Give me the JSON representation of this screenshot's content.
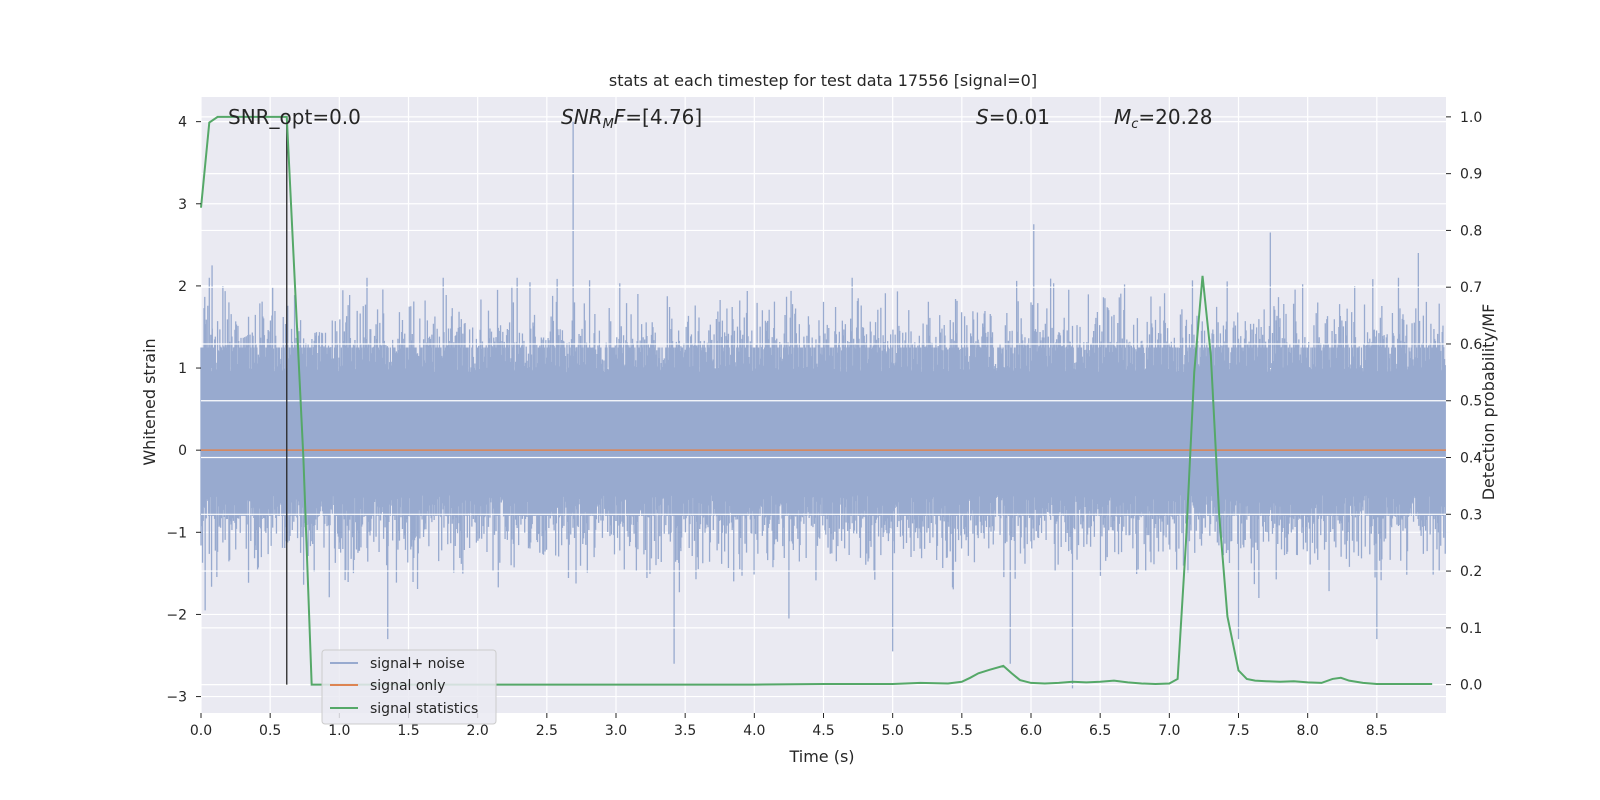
{
  "chart_data": {
    "type": "line",
    "title": "stats at each timestep for test data 17556 [signal=0]",
    "xlabel": "Time (s)",
    "ylabel": "Whitened strain",
    "y2label": "Detection probability/MF",
    "xlim": [
      0,
      9
    ],
    "ylim": [
      -3.2,
      4.3
    ],
    "y2lim": [
      -0.05,
      1.035
    ],
    "xticks": [
      0.0,
      0.5,
      1.0,
      1.5,
      2.0,
      2.5,
      3.0,
      3.5,
      4.0,
      4.5,
      5.0,
      5.5,
      6.0,
      6.5,
      7.0,
      7.5,
      8.0,
      8.5
    ],
    "xtick_labels": [
      "0.0",
      "0.5",
      "1.0",
      "1.5",
      "2.0",
      "2.5",
      "3.0",
      "3.5",
      "4.0",
      "4.5",
      "5.0",
      "5.5",
      "6.0",
      "6.5",
      "7.0",
      "7.5",
      "8.0",
      "8.5"
    ],
    "yticks": [
      -3,
      -2,
      -1,
      0,
      1,
      2,
      3,
      4
    ],
    "ytick_labels": [
      "−3",
      "−2",
      "−1",
      "0",
      "1",
      "2",
      "3",
      "4"
    ],
    "y2ticks": [
      0.0,
      0.1,
      0.2,
      0.3,
      0.4,
      0.5,
      0.6,
      0.7,
      0.8,
      0.9,
      1.0
    ],
    "y2tick_labels": [
      "0.0",
      "0.1",
      "0.2",
      "0.3",
      "0.4",
      "0.5",
      "0.6",
      "0.7",
      "0.8",
      "0.9",
      "1.0"
    ],
    "grid": true,
    "legend_position": "lower-left",
    "annotations": {
      "snr_opt": "SNR_opt=0.0",
      "snr_mf_base": "SNR",
      "snr_mf_sub": "M",
      "snr_mf_tail": "F=[4.76]",
      "s_sym": "S",
      "s_val": "=0.01",
      "mc_sym": "M",
      "mc_sub": "c",
      "mc_val": "=20.28"
    },
    "marker_line_x": 0.62,
    "series": [
      {
        "name": "signal+ noise",
        "color": "#98aacf",
        "axis": "left",
        "noise_envelope": {
          "dense_band": [
            -0.8,
            1.25
          ],
          "typical_peaks": [
            -1.7,
            2.0
          ],
          "spikes": [
            {
              "x": 2.69,
              "y": 4.0
            },
            {
              "x": 0.08,
              "y": 2.25
            },
            {
              "x": 6.02,
              "y": 2.75
            },
            {
              "x": 7.73,
              "y": 2.65
            },
            {
              "x": 8.8,
              "y": 2.4
            },
            {
              "x": 1.2,
              "y": 2.1
            },
            {
              "x": 3.42,
              "y": -2.6
            },
            {
              "x": 6.3,
              "y": -2.9
            },
            {
              "x": 5.85,
              "y": -2.6
            },
            {
              "x": 1.35,
              "y": -2.3
            },
            {
              "x": 8.5,
              "y": -2.3
            },
            {
              "x": 5.0,
              "y": -2.45
            },
            {
              "x": 4.25,
              "y": -2.05
            },
            {
              "x": 7.5,
              "y": -2.3
            },
            {
              "x": 0.03,
              "y": -1.95
            }
          ]
        }
      },
      {
        "name": "signal only",
        "color": "#dd8452",
        "axis": "left",
        "x": [
          0,
          9
        ],
        "y": [
          0,
          0
        ]
      },
      {
        "name": "signal statistics",
        "color": "#55a868",
        "axis": "right",
        "x": [
          0.0,
          0.06,
          0.12,
          0.2,
          0.3,
          0.4,
          0.5,
          0.56,
          0.62,
          0.68,
          0.74,
          0.8,
          1.0,
          1.5,
          2.0,
          2.5,
          3.0,
          3.5,
          4.0,
          4.5,
          5.0,
          5.2,
          5.4,
          5.5,
          5.56,
          5.62,
          5.7,
          5.8,
          5.86,
          5.92,
          6.0,
          6.1,
          6.2,
          6.3,
          6.4,
          6.5,
          6.6,
          6.7,
          6.8,
          6.9,
          7.0,
          7.06,
          7.12,
          7.18,
          7.24,
          7.3,
          7.36,
          7.42,
          7.5,
          7.56,
          7.62,
          7.7,
          7.8,
          7.9,
          8.0,
          8.1,
          8.18,
          8.24,
          8.3,
          8.4,
          8.5,
          8.6,
          8.7,
          8.8,
          8.9
        ],
        "y": [
          0.84,
          0.99,
          1.0,
          1.0,
          1.0,
          1.0,
          1.0,
          1.0,
          1.0,
          0.7,
          0.4,
          0.0,
          0.0,
          0.0,
          0.0,
          0.0,
          0.0,
          0.0,
          0.0,
          0.001,
          0.001,
          0.003,
          0.002,
          0.005,
          0.012,
          0.02,
          0.026,
          0.033,
          0.02,
          0.008,
          0.003,
          0.002,
          0.003,
          0.005,
          0.004,
          0.005,
          0.007,
          0.004,
          0.002,
          0.001,
          0.002,
          0.01,
          0.25,
          0.55,
          0.72,
          0.58,
          0.3,
          0.12,
          0.025,
          0.01,
          0.007,
          0.006,
          0.005,
          0.006,
          0.004,
          0.003,
          0.01,
          0.012,
          0.007,
          0.003,
          0.001,
          0.001,
          0.001,
          0.001,
          0.001
        ]
      }
    ]
  }
}
